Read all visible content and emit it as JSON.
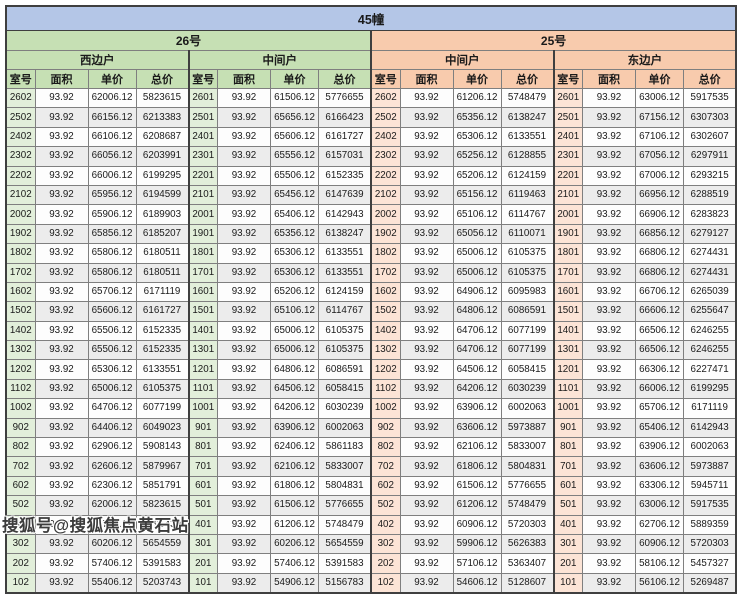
{
  "title": "45幢",
  "watermark": "搜狐号@搜狐焦点黄石站",
  "columns": [
    "室号",
    "面积",
    "单价",
    "总价"
  ],
  "sections": [
    {
      "name": "26号",
      "units": [
        "西边户",
        "中间户"
      ],
      "accent": "#c6e0b4",
      "room_tint": "#e2efda"
    },
    {
      "name": "25号",
      "units": [
        "中间户",
        "东边户"
      ],
      "accent": "#f8cbad",
      "room_tint": "#fce4d6"
    }
  ],
  "colors": {
    "title_bg": "#b4c6e7",
    "green_header": "#c6e0b4",
    "peach_header": "#f8cbad",
    "stripe": "#ececec",
    "border": "#7f7f7f",
    "outer_border": "#3f3f3f"
  },
  "chart_data": {
    "type": "table",
    "title": "45幢",
    "group_headers": [
      "26号",
      "25号"
    ],
    "unit_headers": [
      "西边户",
      "中间户",
      "中间户",
      "东边户"
    ],
    "columns_per_unit": [
      "室号",
      "面积",
      "单价",
      "总价"
    ],
    "rows": [
      [
        "2602",
        "93.92",
        "62006.12",
        "5823615",
        "2601",
        "93.92",
        "61506.12",
        "5776655",
        "2602",
        "93.92",
        "61206.12",
        "5748479",
        "2601",
        "93.92",
        "63006.12",
        "5917535"
      ],
      [
        "2502",
        "93.92",
        "66156.12",
        "6213383",
        "2501",
        "93.92",
        "65656.12",
        "6166423",
        "2502",
        "93.92",
        "65356.12",
        "6138247",
        "2501",
        "93.92",
        "67156.12",
        "6307303"
      ],
      [
        "2402",
        "93.92",
        "66106.12",
        "6208687",
        "2401",
        "93.92",
        "65606.12",
        "6161727",
        "2402",
        "93.92",
        "65306.12",
        "6133551",
        "2401",
        "93.92",
        "67106.12",
        "6302607"
      ],
      [
        "2302",
        "93.92",
        "66056.12",
        "6203991",
        "2301",
        "93.92",
        "65556.12",
        "6157031",
        "2302",
        "93.92",
        "65256.12",
        "6128855",
        "2301",
        "93.92",
        "67056.12",
        "6297911"
      ],
      [
        "2202",
        "93.92",
        "66006.12",
        "6199295",
        "2201",
        "93.92",
        "65506.12",
        "6152335",
        "2202",
        "93.92",
        "65206.12",
        "6124159",
        "2201",
        "93.92",
        "67006.12",
        "6293215"
      ],
      [
        "2102",
        "93.92",
        "65956.12",
        "6194599",
        "2101",
        "93.92",
        "65456.12",
        "6147639",
        "2102",
        "93.92",
        "65156.12",
        "6119463",
        "2101",
        "93.92",
        "66956.12",
        "6288519"
      ],
      [
        "2002",
        "93.92",
        "65906.12",
        "6189903",
        "2001",
        "93.92",
        "65406.12",
        "6142943",
        "2002",
        "93.92",
        "65106.12",
        "6114767",
        "2001",
        "93.92",
        "66906.12",
        "6283823"
      ],
      [
        "1902",
        "93.92",
        "65856.12",
        "6185207",
        "1901",
        "93.92",
        "65356.12",
        "6138247",
        "1902",
        "93.92",
        "65056.12",
        "6110071",
        "1901",
        "93.92",
        "66856.12",
        "6279127"
      ],
      [
        "1802",
        "93.92",
        "65806.12",
        "6180511",
        "1801",
        "93.92",
        "65306.12",
        "6133551",
        "1802",
        "93.92",
        "65006.12",
        "6105375",
        "1801",
        "93.92",
        "66806.12",
        "6274431"
      ],
      [
        "1702",
        "93.92",
        "65806.12",
        "6180511",
        "1701",
        "93.92",
        "65306.12",
        "6133551",
        "1702",
        "93.92",
        "65006.12",
        "6105375",
        "1701",
        "93.92",
        "66806.12",
        "6274431"
      ],
      [
        "1602",
        "93.92",
        "65706.12",
        "6171119",
        "1601",
        "93.92",
        "65206.12",
        "6124159",
        "1602",
        "93.92",
        "64906.12",
        "6095983",
        "1601",
        "93.92",
        "66706.12",
        "6265039"
      ],
      [
        "1502",
        "93.92",
        "65606.12",
        "6161727",
        "1501",
        "93.92",
        "65106.12",
        "6114767",
        "1502",
        "93.92",
        "64806.12",
        "6086591",
        "1501",
        "93.92",
        "66606.12",
        "6255647"
      ],
      [
        "1402",
        "93.92",
        "65506.12",
        "6152335",
        "1401",
        "93.92",
        "65006.12",
        "6105375",
        "1402",
        "93.92",
        "64706.12",
        "6077199",
        "1401",
        "93.92",
        "66506.12",
        "6246255"
      ],
      [
        "1302",
        "93.92",
        "65506.12",
        "6152335",
        "1301",
        "93.92",
        "65006.12",
        "6105375",
        "1302",
        "93.92",
        "64706.12",
        "6077199",
        "1301",
        "93.92",
        "66506.12",
        "6246255"
      ],
      [
        "1202",
        "93.92",
        "65306.12",
        "6133551",
        "1201",
        "93.92",
        "64806.12",
        "6086591",
        "1202",
        "93.92",
        "64506.12",
        "6058415",
        "1201",
        "93.92",
        "66306.12",
        "6227471"
      ],
      [
        "1102",
        "93.92",
        "65006.12",
        "6105375",
        "1101",
        "93.92",
        "64506.12",
        "6058415",
        "1102",
        "93.92",
        "64206.12",
        "6030239",
        "1101",
        "93.92",
        "66006.12",
        "6199295"
      ],
      [
        "1002",
        "93.92",
        "64706.12",
        "6077199",
        "1001",
        "93.92",
        "64206.12",
        "6030239",
        "1002",
        "93.92",
        "63906.12",
        "6002063",
        "1001",
        "93.92",
        "65706.12",
        "6171119"
      ],
      [
        "902",
        "93.92",
        "64406.12",
        "6049023",
        "901",
        "93.92",
        "63906.12",
        "6002063",
        "902",
        "93.92",
        "63606.12",
        "5973887",
        "901",
        "93.92",
        "65406.12",
        "6142943"
      ],
      [
        "802",
        "93.92",
        "62906.12",
        "5908143",
        "801",
        "93.92",
        "62406.12",
        "5861183",
        "802",
        "93.92",
        "62106.12",
        "5833007",
        "801",
        "93.92",
        "63906.12",
        "6002063"
      ],
      [
        "702",
        "93.92",
        "62606.12",
        "5879967",
        "701",
        "93.92",
        "62106.12",
        "5833007",
        "702",
        "93.92",
        "61806.12",
        "5804831",
        "701",
        "93.92",
        "63606.12",
        "5973887"
      ],
      [
        "602",
        "93.92",
        "62306.12",
        "5851791",
        "601",
        "93.92",
        "61806.12",
        "5804831",
        "602",
        "93.92",
        "61506.12",
        "5776655",
        "601",
        "93.92",
        "63306.12",
        "5945711"
      ],
      [
        "502",
        "93.92",
        "62006.12",
        "5823615",
        "501",
        "93.92",
        "61506.12",
        "5776655",
        "502",
        "93.92",
        "61206.12",
        "5748479",
        "501",
        "93.92",
        "63006.12",
        "5917535"
      ],
      [
        "402",
        "93.92",
        "61706.12",
        "5795439",
        "401",
        "93.92",
        "61206.12",
        "5748479",
        "402",
        "93.92",
        "60906.12",
        "5720303",
        "401",
        "93.92",
        "62706.12",
        "5889359"
      ],
      [
        "302",
        "93.92",
        "60206.12",
        "5654559",
        "301",
        "93.92",
        "60206.12",
        "5654559",
        "302",
        "93.92",
        "59906.12",
        "5626383",
        "301",
        "93.92",
        "60906.12",
        "5720303"
      ],
      [
        "202",
        "93.92",
        "57406.12",
        "5391583",
        "201",
        "93.92",
        "57406.12",
        "5391583",
        "202",
        "93.92",
        "57106.12",
        "5363407",
        "201",
        "93.92",
        "58106.12",
        "5457327"
      ],
      [
        "102",
        "93.92",
        "55406.12",
        "5203743",
        "101",
        "93.92",
        "54906.12",
        "5156783",
        "102",
        "93.92",
        "54606.12",
        "5128607",
        "101",
        "93.92",
        "56106.12",
        "5269487"
      ]
    ]
  }
}
